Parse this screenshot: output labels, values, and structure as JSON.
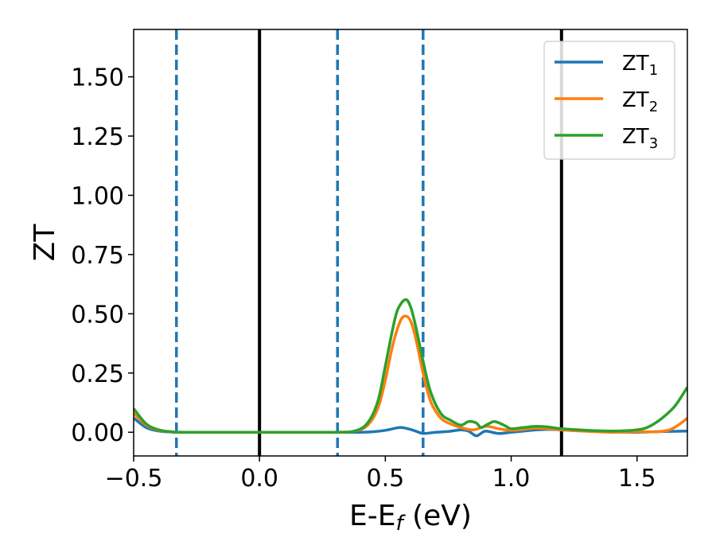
{
  "chart_data": {
    "type": "line",
    "xlabel": "E-E_f (eV)",
    "ylabel": "ZT",
    "xlim": [
      -0.5,
      1.7
    ],
    "ylim": [
      -0.1,
      1.7
    ],
    "xticks": [
      -0.5,
      0.0,
      0.5,
      1.0,
      1.5
    ],
    "xtick_labels": [
      "−0.5",
      "0.0",
      "0.5",
      "1.0",
      "1.5"
    ],
    "yticks": [
      0.0,
      0.25,
      0.5,
      0.75,
      1.0,
      1.25,
      1.5
    ],
    "ytick_labels": [
      "0.00",
      "0.25",
      "0.50",
      "0.75",
      "1.00",
      "1.25",
      "1.50"
    ],
    "grid": false,
    "legend_position": "top-right",
    "series": [
      {
        "name": "ZT_1",
        "color": "#1f77b4",
        "x": [
          -0.5,
          -0.45,
          -0.4,
          -0.35,
          -0.3,
          0.0,
          0.3,
          0.4,
          0.45,
          0.5,
          0.53,
          0.56,
          0.59,
          0.62,
          0.65,
          0.7,
          0.75,
          0.8,
          0.83,
          0.86,
          0.88,
          0.9,
          0.95,
          1.0,
          1.05,
          1.1,
          1.15,
          1.2,
          1.3,
          1.4,
          1.5,
          1.6,
          1.7
        ],
        "y": [
          0.06,
          0.02,
          0.005,
          0.001,
          0.0,
          0.0,
          0.0,
          0.0,
          0.002,
          0.008,
          0.015,
          0.02,
          0.015,
          0.005,
          -0.005,
          0.0,
          0.003,
          0.01,
          0.005,
          -0.015,
          -0.005,
          0.005,
          -0.005,
          0.0,
          0.005,
          0.01,
          0.012,
          0.01,
          0.005,
          0.002,
          0.0,
          0.003,
          0.005
        ]
      },
      {
        "name": "ZT_2",
        "color": "#ff7f0e",
        "x": [
          -0.5,
          -0.45,
          -0.4,
          -0.35,
          -0.3,
          0.0,
          0.3,
          0.38,
          0.43,
          0.47,
          0.5,
          0.53,
          0.56,
          0.58,
          0.6,
          0.62,
          0.65,
          0.68,
          0.72,
          0.76,
          0.8,
          0.85,
          0.9,
          0.95,
          1.0,
          1.05,
          1.1,
          1.2,
          1.3,
          1.4,
          1.5,
          1.58,
          1.63,
          1.67,
          1.7
        ],
        "y": [
          0.08,
          0.03,
          0.008,
          0.002,
          0.0,
          0.0,
          0.0,
          0.005,
          0.03,
          0.1,
          0.22,
          0.37,
          0.47,
          0.49,
          0.47,
          0.4,
          0.25,
          0.13,
          0.06,
          0.035,
          0.02,
          0.01,
          0.025,
          0.015,
          0.008,
          0.012,
          0.018,
          0.01,
          0.004,
          0.0,
          0.002,
          0.002,
          0.01,
          0.035,
          0.06
        ]
      },
      {
        "name": "ZT_3",
        "color": "#2ca02c",
        "x": [
          -0.5,
          -0.45,
          -0.4,
          -0.35,
          -0.3,
          0.0,
          0.3,
          0.38,
          0.43,
          0.47,
          0.5,
          0.53,
          0.55,
          0.58,
          0.6,
          0.62,
          0.65,
          0.68,
          0.72,
          0.76,
          0.8,
          0.83,
          0.86,
          0.88,
          0.9,
          0.93,
          0.95,
          0.98,
          1.0,
          1.05,
          1.1,
          1.15,
          1.2,
          1.3,
          1.4,
          1.5,
          1.55,
          1.6,
          1.65,
          1.7
        ],
        "y": [
          0.1,
          0.035,
          0.01,
          0.002,
          0.0,
          0.0,
          0.0,
          0.006,
          0.04,
          0.13,
          0.28,
          0.44,
          0.52,
          0.56,
          0.53,
          0.45,
          0.3,
          0.17,
          0.08,
          0.05,
          0.03,
          0.045,
          0.04,
          0.02,
          0.03,
          0.045,
          0.04,
          0.025,
          0.015,
          0.02,
          0.025,
          0.022,
          0.015,
          0.008,
          0.005,
          0.01,
          0.025,
          0.06,
          0.11,
          0.19
        ]
      }
    ],
    "vlines": [
      {
        "x": -0.33,
        "style": "dashed",
        "color": "#1f77b4"
      },
      {
        "x": 0.0,
        "style": "solid",
        "color": "#000000"
      },
      {
        "x": 0.31,
        "style": "dashed",
        "color": "#1f77b4"
      },
      {
        "x": 0.65,
        "style": "dashed",
        "color": "#1f77b4"
      },
      {
        "x": 1.2,
        "style": "solid",
        "color": "#000000"
      }
    ],
    "legend": [
      {
        "base": "ZT",
        "sub": "1",
        "color": "#1f77b4"
      },
      {
        "base": "ZT",
        "sub": "2",
        "color": "#ff7f0e"
      },
      {
        "base": "ZT",
        "sub": "3",
        "color": "#2ca02c"
      }
    ]
  }
}
